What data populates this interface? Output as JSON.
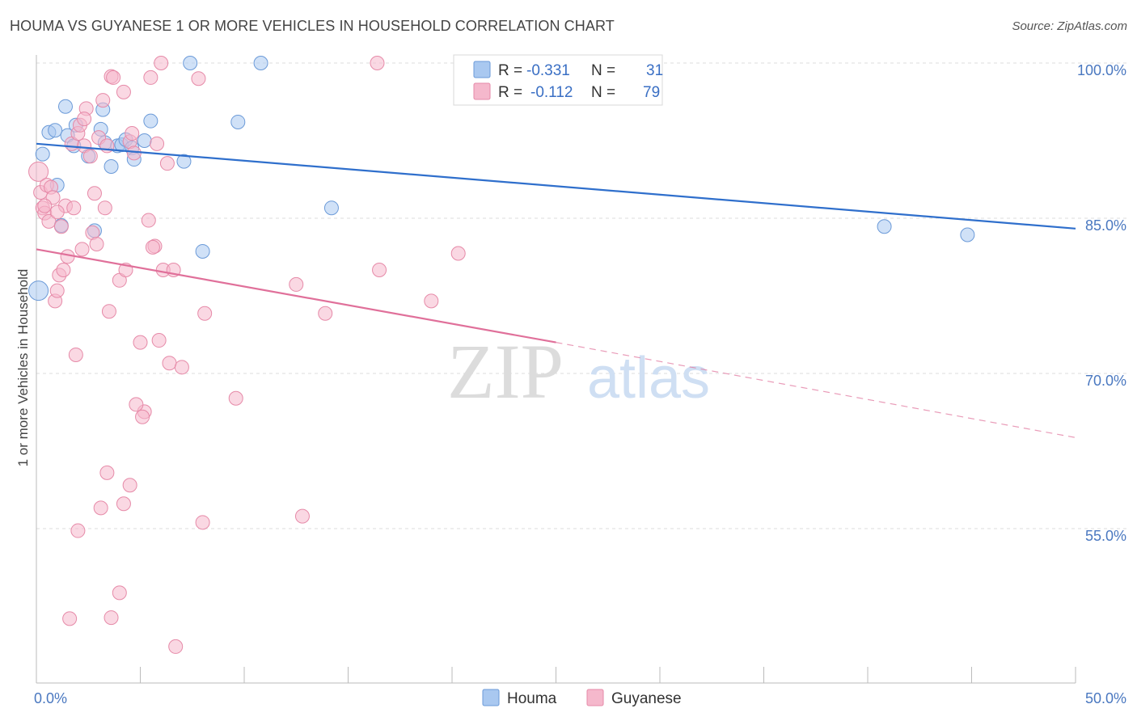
{
  "title": "HOUMA VS GUYANESE 1 OR MORE VEHICLES IN HOUSEHOLD CORRELATION CHART",
  "source": "Source: ZipAtlas.com",
  "watermark": {
    "zip": "ZIP",
    "atlas": "atlas"
  },
  "chart_data": {
    "type": "scatter",
    "title": "HOUMA VS GUYANESE 1 OR MORE VEHICLES IN HOUSEHOLD CORRELATION CHART",
    "xlabel": "",
    "ylabel": "1 or more Vehicles in Household",
    "xlim": [
      0,
      50
    ],
    "ylim": [
      40,
      102
    ],
    "x_tick_labels": [
      "0.0%",
      "50.0%"
    ],
    "y_ticks": [
      55,
      70,
      85,
      100
    ],
    "y_tick_labels": [
      "55.0%",
      "70.0%",
      "85.0%",
      "100.0%"
    ],
    "grid": true,
    "legend": {
      "placement": "top-center",
      "entries": [
        {
          "series": "Houma",
          "r_label": "R =",
          "r_value": "-0.331",
          "n_label": "N =",
          "n_value": "31"
        },
        {
          "series": "Guyanese",
          "r_label": "R =",
          "r_value": "-0.112",
          "n_label": "N =",
          "n_value": "79"
        }
      ]
    },
    "series": [
      {
        "name": "Houma",
        "color": "#a9c8f0",
        "stroke": "#6b9ad8",
        "trend_color": "#2f6fcc",
        "trend": {
          "x": [
            0,
            50
          ],
          "y": [
            92.2,
            84.0
          ]
        },
        "points": [
          [
            0.1,
            78.0
          ],
          [
            0.3,
            91.2
          ],
          [
            0.6,
            93.3
          ],
          [
            0.9,
            93.5
          ],
          [
            1.0,
            88.2
          ],
          [
            1.2,
            84.3
          ],
          [
            1.4,
            95.8
          ],
          [
            1.5,
            93.0
          ],
          [
            1.8,
            92.0
          ],
          [
            1.9,
            94.0
          ],
          [
            2.5,
            91.0
          ],
          [
            2.8,
            83.8
          ],
          [
            3.1,
            93.6
          ],
          [
            3.2,
            95.5
          ],
          [
            3.3,
            92.3
          ],
          [
            3.6,
            90.0
          ],
          [
            3.9,
            92.0
          ],
          [
            4.1,
            92.1
          ],
          [
            4.3,
            92.6
          ],
          [
            4.6,
            91.8
          ],
          [
            4.7,
            90.7
          ],
          [
            5.2,
            92.5
          ],
          [
            5.5,
            94.4
          ],
          [
            7.1,
            90.5
          ],
          [
            7.4,
            100.0
          ],
          [
            8.0,
            81.8
          ],
          [
            9.7,
            94.3
          ],
          [
            10.8,
            100.0
          ],
          [
            14.2,
            86.0
          ],
          [
            40.8,
            84.2
          ],
          [
            44.8,
            83.4
          ]
        ]
      },
      {
        "name": "Guyanese",
        "color": "#f5b8cc",
        "stroke": "#e68aa8",
        "trend_color": "#e0709a",
        "trend": {
          "x": [
            0,
            25
          ],
          "y": [
            82.0,
            73.0
          ]
        },
        "trend_dashed": {
          "x": [
            25,
            50
          ],
          "y": [
            73.0,
            63.8
          ]
        },
        "points": [
          [
            0.1,
            89.5
          ],
          [
            0.2,
            87.5
          ],
          [
            0.3,
            86.0
          ],
          [
            0.4,
            85.5
          ],
          [
            0.5,
            88.2
          ],
          [
            0.6,
            84.7
          ],
          [
            0.7,
            88.0
          ],
          [
            0.8,
            87.0
          ],
          [
            0.9,
            77.0
          ],
          [
            1.0,
            78.0
          ],
          [
            1.1,
            79.5
          ],
          [
            1.2,
            84.2
          ],
          [
            1.3,
            80.0
          ],
          [
            1.4,
            86.2
          ],
          [
            1.5,
            81.3
          ],
          [
            1.7,
            92.2
          ],
          [
            1.8,
            86.0
          ],
          [
            1.9,
            71.8
          ],
          [
            2.0,
            93.2
          ],
          [
            2.1,
            94.0
          ],
          [
            2.2,
            82.0
          ],
          [
            2.3,
            92.0
          ],
          [
            2.4,
            95.6
          ],
          [
            2.6,
            91.0
          ],
          [
            2.7,
            83.6
          ],
          [
            2.8,
            87.4
          ],
          [
            2.9,
            82.5
          ],
          [
            3.0,
            92.8
          ],
          [
            3.2,
            96.4
          ],
          [
            3.3,
            86.0
          ],
          [
            3.4,
            92.0
          ],
          [
            3.5,
            76.0
          ],
          [
            3.6,
            98.7
          ],
          [
            3.7,
            98.6
          ],
          [
            4.0,
            79.0
          ],
          [
            4.2,
            97.2
          ],
          [
            4.3,
            80.0
          ],
          [
            4.5,
            92.4
          ],
          [
            4.6,
            93.2
          ],
          [
            4.7,
            91.3
          ],
          [
            5.0,
            73.0
          ],
          [
            5.2,
            66.3
          ],
          [
            5.4,
            84.8
          ],
          [
            5.5,
            98.6
          ],
          [
            5.7,
            82.3
          ],
          [
            5.8,
            92.2
          ],
          [
            5.9,
            73.2
          ],
          [
            6.0,
            100.0
          ],
          [
            6.1,
            80.0
          ],
          [
            6.3,
            90.3
          ],
          [
            6.4,
            71.0
          ],
          [
            6.6,
            80.0
          ],
          [
            7.0,
            70.6
          ],
          [
            7.8,
            98.5
          ],
          [
            8.1,
            75.8
          ],
          [
            8.0,
            55.6
          ],
          [
            9.6,
            67.6
          ],
          [
            12.5,
            78.6
          ],
          [
            12.8,
            56.2
          ],
          [
            13.9,
            75.8
          ],
          [
            16.4,
            100.0
          ],
          [
            16.5,
            80.0
          ],
          [
            19.0,
            77.0
          ],
          [
            20.3,
            81.6
          ],
          [
            3.4,
            60.4
          ],
          [
            3.6,
            46.4
          ],
          [
            4.0,
            48.8
          ],
          [
            4.2,
            57.4
          ],
          [
            4.5,
            59.2
          ],
          [
            4.8,
            67.0
          ],
          [
            5.1,
            65.8
          ],
          [
            3.1,
            57.0
          ],
          [
            2.0,
            54.8
          ],
          [
            1.6,
            46.3
          ],
          [
            6.7,
            43.6
          ],
          [
            2.3,
            94.6
          ],
          [
            1.0,
            85.6
          ],
          [
            0.4,
            86.2
          ],
          [
            5.6,
            82.2
          ]
        ]
      }
    ]
  }
}
